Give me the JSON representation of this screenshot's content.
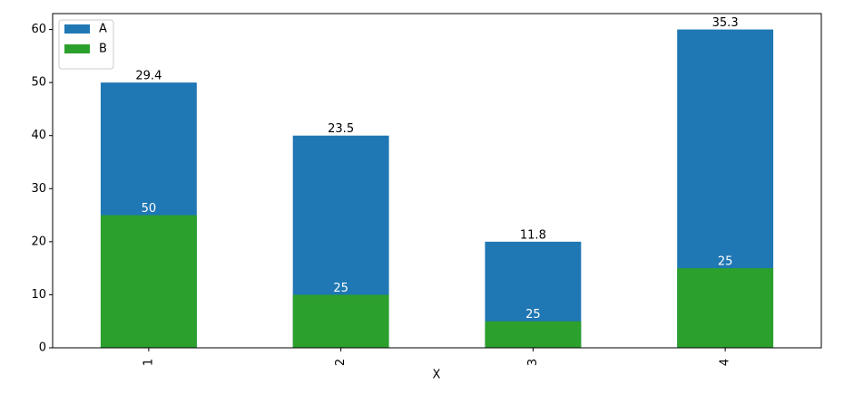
{
  "chart_data": {
    "type": "bar",
    "stacked": false,
    "x_label": "X",
    "categories": [
      "1",
      "2",
      "3",
      "4"
    ],
    "series": [
      {
        "name": "A",
        "color": "#1f77b4",
        "values": [
          50,
          40,
          20,
          60
        ],
        "labels": [
          "29.4",
          "23.5",
          "11.8",
          "35.3"
        ],
        "label_color": "#000000"
      },
      {
        "name": "B",
        "color": "#2ca02c",
        "values": [
          25,
          10,
          5,
          15
        ],
        "labels": [
          "50",
          "25",
          "25",
          "25"
        ],
        "label_color": "#ffffff"
      }
    ],
    "ylim": [
      0,
      63
    ],
    "yticks": [
      0,
      10,
      20,
      30,
      40,
      50,
      60
    ],
    "legend": "upper left"
  }
}
